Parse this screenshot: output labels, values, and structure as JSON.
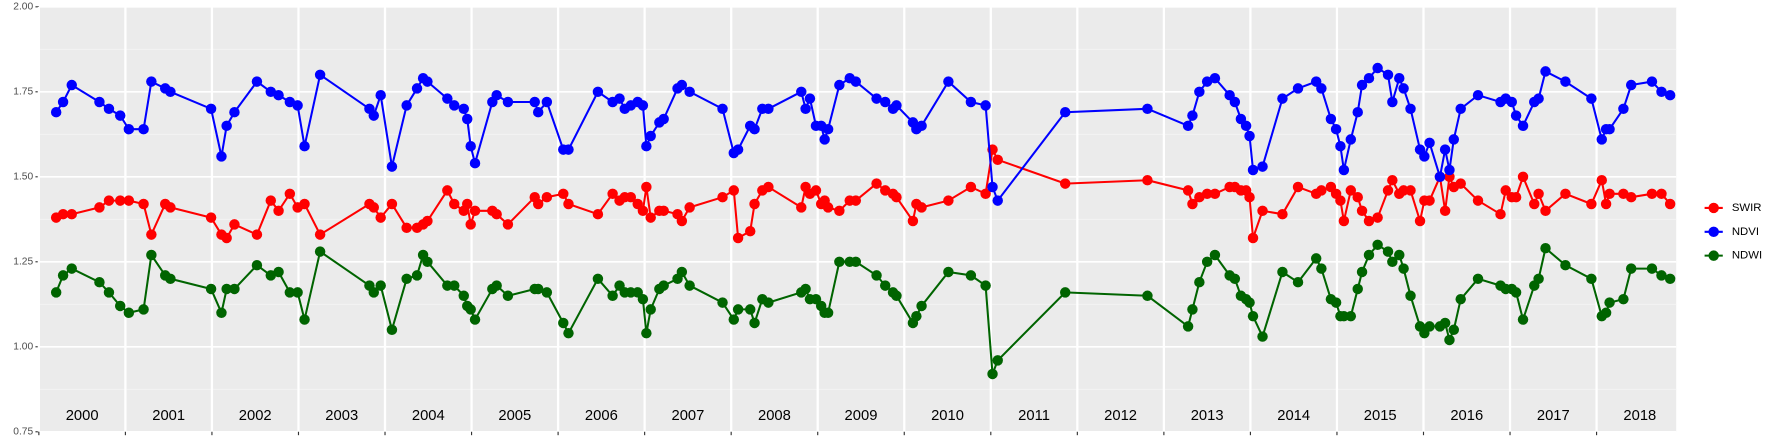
{
  "chart_data": {
    "type": "line",
    "year_labels": [
      "2000",
      "2001",
      "2002",
      "2003",
      "2004",
      "2005",
      "2006",
      "2007",
      "2008",
      "2009",
      "2010",
      "2011",
      "2012",
      "2013",
      "2014",
      "2015",
      "2016",
      "2017",
      "2018"
    ],
    "x": [
      2000.2,
      2000.28,
      2000.38,
      2000.7,
      2000.81,
      2000.94,
      2001.04,
      2001.21,
      2001.3,
      2001.46,
      2001.52,
      2001.99,
      2002.11,
      2002.17,
      2002.26,
      2002.52,
      2002.68,
      2002.77,
      2002.9,
      2002.99,
      2003.07,
      2003.25,
      2003.82,
      2003.87,
      2003.95,
      2004.08,
      2004.25,
      2004.37,
      2004.44,
      2004.49,
      2004.72,
      2004.8,
      2004.91,
      2004.95,
      2004.99,
      2005.04,
      2005.24,
      2005.29,
      2005.42,
      2005.73,
      2005.77,
      2005.87,
      2006.06,
      2006.12,
      2006.46,
      2006.63,
      2006.71,
      2006.77,
      2006.84,
      2006.92,
      2006.98,
      2007.02,
      2007.07,
      2007.17,
      2007.22,
      2007.38,
      2007.43,
      2007.52,
      2007.9,
      2008.03,
      2008.08,
      2008.22,
      2008.27,
      2008.36,
      2008.43,
      2008.81,
      2008.86,
      2008.91,
      2008.98,
      2009.04,
      2009.08,
      2009.12,
      2009.25,
      2009.37,
      2009.44,
      2009.68,
      2009.78,
      2009.87,
      2009.91,
      2010.1,
      2010.14,
      2010.2,
      2010.51,
      2010.77,
      2010.94,
      2011.02,
      2011.08,
      2011.86,
      2012.81,
      2013.28,
      2013.33,
      2013.41,
      2013.5,
      2013.59,
      2013.76,
      2013.82,
      2013.89,
      2013.95,
      2013.99,
      2014.03,
      2014.14,
      2014.37,
      2014.55,
      2014.76,
      2014.82,
      2014.93,
      2014.99,
      2015.04,
      2015.08,
      2015.16,
      2015.24,
      2015.29,
      2015.37,
      2015.47,
      2015.59,
      2015.64,
      2015.72,
      2015.77,
      2015.85,
      2015.96,
      2016.01,
      2016.07,
      2016.19,
      2016.25,
      2016.3,
      2016.35,
      2016.43,
      2016.63,
      2016.89,
      2016.95,
      2017.02,
      2017.07,
      2017.15,
      2017.28,
      2017.33,
      2017.41,
      2017.64,
      2017.94,
      2018.06,
      2018.11,
      2018.15,
      2018.31,
      2018.4,
      2018.64,
      2018.75,
      2018.85
    ],
    "series": [
      {
        "name": "SWIR",
        "color": "#ff0000",
        "values": [
          1.38,
          1.39,
          1.39,
          1.41,
          1.43,
          1.43,
          1.43,
          1.42,
          1.33,
          1.42,
          1.41,
          1.38,
          1.33,
          1.32,
          1.36,
          1.33,
          1.43,
          1.4,
          1.45,
          1.41,
          1.42,
          1.33,
          1.42,
          1.41,
          1.38,
          1.42,
          1.35,
          1.35,
          1.36,
          1.37,
          1.46,
          1.42,
          1.4,
          1.42,
          1.36,
          1.4,
          1.4,
          1.39,
          1.36,
          1.44,
          1.42,
          1.44,
          1.45,
          1.42,
          1.39,
          1.45,
          1.43,
          1.44,
          1.44,
          1.42,
          1.4,
          1.47,
          1.38,
          1.4,
          1.4,
          1.39,
          1.37,
          1.41,
          1.44,
          1.46,
          1.32,
          1.34,
          1.42,
          1.46,
          1.47,
          1.41,
          1.47,
          1.45,
          1.46,
          1.42,
          1.43,
          1.41,
          1.4,
          1.43,
          1.43,
          1.48,
          1.46,
          1.45,
          1.44,
          1.37,
          1.42,
          1.41,
          1.43,
          1.47,
          1.45,
          1.58,
          1.55,
          1.48,
          1.49,
          1.46,
          1.42,
          1.44,
          1.45,
          1.45,
          1.47,
          1.47,
          1.46,
          1.46,
          1.44,
          1.32,
          1.4,
          1.39,
          1.47,
          1.45,
          1.46,
          1.47,
          1.45,
          1.43,
          1.37,
          1.46,
          1.44,
          1.4,
          1.37,
          1.38,
          1.46,
          1.49,
          1.45,
          1.46,
          1.46,
          1.37,
          1.43,
          1.43,
          1.5,
          1.4,
          1.5,
          1.47,
          1.48,
          1.43,
          1.39,
          1.46,
          1.44,
          1.44,
          1.5,
          1.42,
          1.45,
          1.4,
          1.45,
          1.42,
          1.49,
          1.42,
          1.45,
          1.45,
          1.44,
          1.45,
          1.45,
          1.42
        ]
      },
      {
        "name": "NDVI",
        "color": "#0000ff",
        "values": [
          1.69,
          1.72,
          1.77,
          1.72,
          1.7,
          1.68,
          1.64,
          1.64,
          1.78,
          1.76,
          1.75,
          1.7,
          1.56,
          1.65,
          1.69,
          1.78,
          1.75,
          1.74,
          1.72,
          1.71,
          1.59,
          1.8,
          1.7,
          1.68,
          1.74,
          1.53,
          1.71,
          1.76,
          1.79,
          1.78,
          1.73,
          1.71,
          1.7,
          1.67,
          1.59,
          1.54,
          1.72,
          1.74,
          1.72,
          1.72,
          1.69,
          1.72,
          1.58,
          1.58,
          1.75,
          1.72,
          1.73,
          1.7,
          1.71,
          1.72,
          1.71,
          1.59,
          1.62,
          1.66,
          1.67,
          1.76,
          1.77,
          1.75,
          1.7,
          1.57,
          1.58,
          1.65,
          1.64,
          1.7,
          1.7,
          1.75,
          1.7,
          1.73,
          1.65,
          1.65,
          1.61,
          1.64,
          1.77,
          1.79,
          1.78,
          1.73,
          1.72,
          1.7,
          1.71,
          1.66,
          1.64,
          1.65,
          1.78,
          1.72,
          1.71,
          1.47,
          1.43,
          1.69,
          1.7,
          1.65,
          1.68,
          1.75,
          1.78,
          1.79,
          1.74,
          1.72,
          1.67,
          1.65,
          1.62,
          1.52,
          1.53,
          1.73,
          1.76,
          1.78,
          1.76,
          1.67,
          1.64,
          1.59,
          1.52,
          1.61,
          1.69,
          1.77,
          1.79,
          1.82,
          1.8,
          1.72,
          1.79,
          1.76,
          1.7,
          1.58,
          1.56,
          1.6,
          1.5,
          1.58,
          1.52,
          1.61,
          1.7,
          1.74,
          1.72,
          1.73,
          1.72,
          1.68,
          1.65,
          1.72,
          1.73,
          1.81,
          1.78,
          1.73,
          1.61,
          1.64,
          1.64,
          1.7,
          1.77,
          1.78,
          1.75,
          1.74
        ]
      },
      {
        "name": "NDWI",
        "color": "#006400",
        "values": [
          1.16,
          1.21,
          1.23,
          1.19,
          1.16,
          1.12,
          1.1,
          1.11,
          1.27,
          1.21,
          1.2,
          1.17,
          1.1,
          1.17,
          1.17,
          1.24,
          1.21,
          1.22,
          1.16,
          1.16,
          1.08,
          1.28,
          1.18,
          1.16,
          1.18,
          1.05,
          1.2,
          1.21,
          1.27,
          1.25,
          1.18,
          1.18,
          1.15,
          1.12,
          1.11,
          1.08,
          1.17,
          1.18,
          1.15,
          1.17,
          1.17,
          1.16,
          1.07,
          1.04,
          1.2,
          1.15,
          1.18,
          1.16,
          1.16,
          1.16,
          1.14,
          1.04,
          1.11,
          1.17,
          1.18,
          1.2,
          1.22,
          1.18,
          1.13,
          1.08,
          1.11,
          1.11,
          1.07,
          1.14,
          1.13,
          1.16,
          1.17,
          1.14,
          1.14,
          1.12,
          1.1,
          1.1,
          1.25,
          1.25,
          1.25,
          1.21,
          1.18,
          1.16,
          1.15,
          1.07,
          1.09,
          1.12,
          1.22,
          1.21,
          1.18,
          0.92,
          0.96,
          1.16,
          1.15,
          1.06,
          1.11,
          1.19,
          1.25,
          1.27,
          1.21,
          1.2,
          1.15,
          1.14,
          1.13,
          1.09,
          1.03,
          1.22,
          1.19,
          1.26,
          1.23,
          1.14,
          1.13,
          1.09,
          1.09,
          1.09,
          1.17,
          1.22,
          1.27,
          1.3,
          1.28,
          1.25,
          1.27,
          1.23,
          1.15,
          1.06,
          1.04,
          1.06,
          1.06,
          1.07,
          1.02,
          1.05,
          1.14,
          1.2,
          1.18,
          1.17,
          1.17,
          1.16,
          1.08,
          1.18,
          1.2,
          1.29,
          1.24,
          1.2,
          1.09,
          1.1,
          1.13,
          1.14,
          1.23,
          1.23,
          1.21,
          1.2
        ]
      }
    ],
    "xlim": [
      2000,
      2018.92
    ],
    "xticks": [
      2000,
      2001,
      2002,
      2003,
      2004,
      2005,
      2006,
      2007,
      2008,
      2009,
      2010,
      2011,
      2012,
      2013,
      2014,
      2015,
      2016,
      2017,
      2018
    ],
    "ylim": [
      0.75,
      2.0
    ],
    "yticks": [
      0.75,
      {
        "value": 1,
        "label": "1.00"
      },
      1.25,
      {
        "value": 1.5,
        "label": "1.50"
      },
      1.75,
      {
        "value": 2,
        "label": "2.00"
      }
    ],
    "grid": true,
    "legend": "right"
  }
}
